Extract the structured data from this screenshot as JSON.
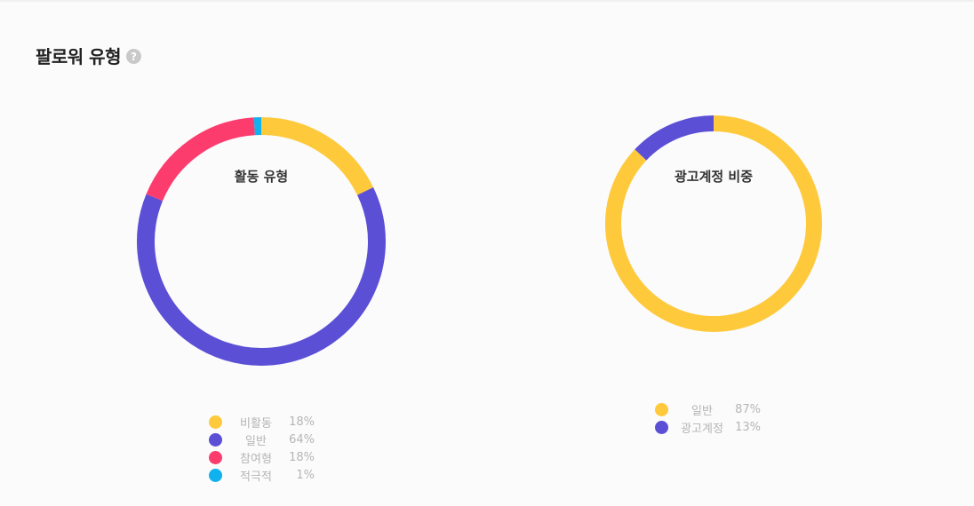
{
  "section": {
    "title": "팔로워 유형",
    "help_icon": "?"
  },
  "chart_data": [
    {
      "type": "pie",
      "title": "활동 유형",
      "categories": [
        "비활동",
        "일반",
        "참여형",
        "적극적"
      ],
      "values": [
        18,
        64,
        18,
        1
      ],
      "value_labels": [
        "18%",
        "64%",
        "18%",
        "1%"
      ],
      "colors": [
        "#fec93b",
        "#5b4fd6",
        "#fd3c6e",
        "#0fb1ef"
      ],
      "donut": true,
      "legend_position": "bottom"
    },
    {
      "type": "pie",
      "title": "광고계정 비중",
      "categories": [
        "일반",
        "광고계정"
      ],
      "values": [
        87,
        13
      ],
      "value_labels": [
        "87%",
        "13%"
      ],
      "colors": [
        "#fec93b",
        "#5b4fd6"
      ],
      "donut": true,
      "legend_position": "bottom"
    }
  ]
}
